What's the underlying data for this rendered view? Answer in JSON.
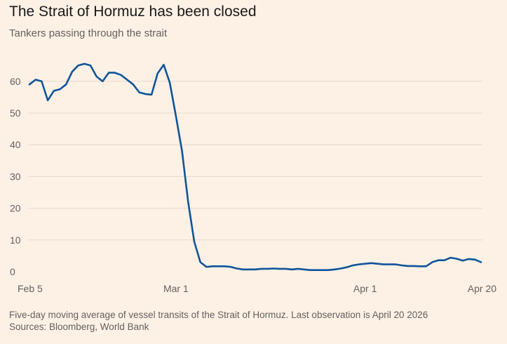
{
  "title": "The Strait of Hormuz has been closed",
  "subtitle": "Tankers passing through the strait",
  "footer": {
    "note": "Five-day moving average of vessel transits of the Strait of Hormuz. Last observation is April 20 2026",
    "sources": "Sources: Bloomberg, World Bank"
  },
  "colors": {
    "background": "#fdf1e6",
    "line": "#0f5499",
    "gridline": "#e6d9ce",
    "baseline": "#33302e"
  },
  "chart_data": {
    "type": "line",
    "title": "The Strait of Hormuz has been closed",
    "subtitle": "Tankers passing through the strait",
    "xlabel": "",
    "ylabel": "",
    "ylim": [
      0,
      70
    ],
    "grid": true,
    "y_ticks": [
      "0",
      "10",
      "20",
      "30",
      "40",
      "50",
      "60"
    ],
    "x_ticks": [
      {
        "label": "Feb 5",
        "day": 0
      },
      {
        "label": "Mar 1",
        "day": 24
      },
      {
        "label": "Apr 1",
        "day": 55
      },
      {
        "label": "Apr 20",
        "day": 74
      }
    ],
    "series": [
      {
        "values": [
          [
            0,
            59
          ],
          [
            1,
            60.5
          ],
          [
            2,
            60
          ],
          [
            3,
            54
          ],
          [
            4,
            57
          ],
          [
            5,
            57.5
          ],
          [
            6,
            59
          ],
          [
            7,
            63
          ],
          [
            8,
            65
          ],
          [
            9,
            65.5
          ],
          [
            10,
            65
          ],
          [
            11,
            61.5
          ],
          [
            12,
            60
          ],
          [
            13,
            62.7
          ],
          [
            14,
            62.7
          ],
          [
            15,
            62
          ],
          [
            16,
            60.5
          ],
          [
            17,
            59
          ],
          [
            18,
            56.5
          ],
          [
            19,
            56
          ],
          [
            20,
            55.8
          ],
          [
            21,
            62.5
          ],
          [
            22,
            65.2
          ],
          [
            23,
            59.5
          ],
          [
            24,
            49
          ],
          [
            25,
            38
          ],
          [
            26,
            22
          ],
          [
            27,
            9.5
          ],
          [
            28,
            3
          ],
          [
            29,
            1.5
          ],
          [
            30,
            1.7
          ],
          [
            31,
            1.7
          ],
          [
            32,
            1.7
          ],
          [
            33,
            1.5
          ],
          [
            34,
            1
          ],
          [
            35,
            0.7
          ],
          [
            36,
            0.7
          ],
          [
            37,
            0.7
          ],
          [
            38,
            0.9
          ],
          [
            39,
            0.9
          ],
          [
            40,
            1
          ],
          [
            41,
            0.9
          ],
          [
            42,
            0.9
          ],
          [
            43,
            0.7
          ],
          [
            44,
            0.9
          ],
          [
            45,
            0.7
          ],
          [
            46,
            0.5
          ],
          [
            47,
            0.5
          ],
          [
            48,
            0.5
          ],
          [
            49,
            0.5
          ],
          [
            50,
            0.7
          ],
          [
            51,
            1
          ],
          [
            52,
            1.4
          ],
          [
            53,
            2
          ],
          [
            54,
            2.3
          ],
          [
            55,
            2.5
          ],
          [
            56,
            2.7
          ],
          [
            57,
            2.5
          ],
          [
            58,
            2.3
          ],
          [
            59,
            2.3
          ],
          [
            60,
            2.3
          ],
          [
            61,
            2
          ],
          [
            62,
            1.8
          ],
          [
            63,
            1.8
          ],
          [
            64,
            1.7
          ],
          [
            65,
            1.7
          ],
          [
            66,
            3
          ],
          [
            67,
            3.6
          ],
          [
            68,
            3.6
          ],
          [
            69,
            4.4
          ],
          [
            70,
            4.1
          ],
          [
            71,
            3.5
          ],
          [
            72,
            4
          ],
          [
            73,
            3.8
          ],
          [
            74,
            3
          ]
        ]
      }
    ]
  }
}
